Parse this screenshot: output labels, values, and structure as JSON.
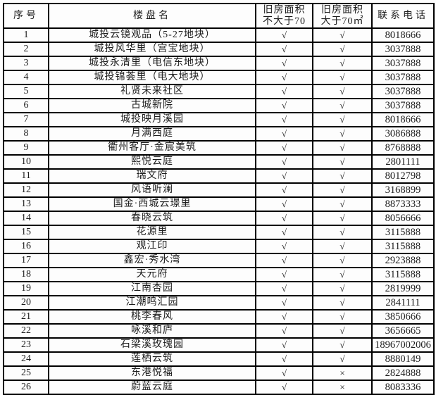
{
  "table": {
    "headers": {
      "seq": "序号",
      "name": "楼盘名",
      "le70_line1": "旧房面积",
      "le70_line2": "不大于70",
      "gt70_line1": "旧房面积",
      "gt70_line2": "大于70㎡",
      "phone": "联系电话"
    },
    "marks": {
      "check": "√",
      "cross": "×"
    },
    "rows": [
      {
        "seq": "1",
        "name": "城投云镜观品（5-27地块）",
        "le70": "√",
        "gt70": "√",
        "phone": "8018666"
      },
      {
        "seq": "2",
        "name": "城投风华里（宫宝地块）",
        "le70": "√",
        "gt70": "√",
        "phone": "3037888"
      },
      {
        "seq": "3",
        "name": "城投永清里（电信东地块）",
        "le70": "√",
        "gt70": "√",
        "phone": "3037888"
      },
      {
        "seq": "4",
        "name": "城投锦荟里（电大地块）",
        "le70": "√",
        "gt70": "√",
        "phone": "3037888"
      },
      {
        "seq": "5",
        "name": "礼贤未来社区",
        "le70": "√",
        "gt70": "√",
        "phone": "3037888"
      },
      {
        "seq": "6",
        "name": "古城新院",
        "le70": "√",
        "gt70": "√",
        "phone": "3037888"
      },
      {
        "seq": "7",
        "name": "城投映月溪园",
        "le70": "√",
        "gt70": "√",
        "phone": "8018666"
      },
      {
        "seq": "8",
        "name": "月满西庭",
        "le70": "√",
        "gt70": "√",
        "phone": "3086888"
      },
      {
        "seq": "9",
        "name": "衢州客厅·金宸美筑",
        "le70": "√",
        "gt70": "√",
        "phone": "8768888"
      },
      {
        "seq": "10",
        "name": "熙悦云庭",
        "le70": "√",
        "gt70": "√",
        "phone": "2801111"
      },
      {
        "seq": "11",
        "name": "瑞文府",
        "le70": "√",
        "gt70": "√",
        "phone": "8012798"
      },
      {
        "seq": "12",
        "name": "风语听澜",
        "le70": "√",
        "gt70": "√",
        "phone": "3168899"
      },
      {
        "seq": "13",
        "name": "国金·西城云璟里",
        "le70": "√",
        "gt70": "√",
        "phone": "8873333"
      },
      {
        "seq": "14",
        "name": "春晓云筑",
        "le70": "√",
        "gt70": "√",
        "phone": "8056666"
      },
      {
        "seq": "15",
        "name": "花源里",
        "le70": "√",
        "gt70": "√",
        "phone": "3115888"
      },
      {
        "seq": "16",
        "name": "观江印",
        "le70": "√",
        "gt70": "√",
        "phone": "3115888"
      },
      {
        "seq": "17",
        "name": "鑫宏·秀水湾",
        "le70": "√",
        "gt70": "√",
        "phone": "2923888"
      },
      {
        "seq": "18",
        "name": "天元府",
        "le70": "√",
        "gt70": "√",
        "phone": "3115888"
      },
      {
        "seq": "19",
        "name": "江南杏园",
        "le70": "√",
        "gt70": "√",
        "phone": "2819999"
      },
      {
        "seq": "20",
        "name": "江潮鸣汇园",
        "le70": "√",
        "gt70": "√",
        "phone": "2841111"
      },
      {
        "seq": "21",
        "name": "桃李春风",
        "le70": "√",
        "gt70": "√",
        "phone": "3850666"
      },
      {
        "seq": "22",
        "name": "咏溪和庐",
        "le70": "√",
        "gt70": "√",
        "phone": "3656665"
      },
      {
        "seq": "23",
        "name": "石梁溪玫瑰园",
        "le70": "√",
        "gt70": "√",
        "phone": "18967002006"
      },
      {
        "seq": "24",
        "name": "莲栖云筑",
        "le70": "√",
        "gt70": "√",
        "phone": "8880149"
      },
      {
        "seq": "25",
        "name": "东港悦福",
        "le70": "√",
        "gt70": "×",
        "phone": "2824888"
      },
      {
        "seq": "26",
        "name": "蔚蓝云庭",
        "le70": "√",
        "gt70": "×",
        "phone": "8083336"
      }
    ]
  }
}
